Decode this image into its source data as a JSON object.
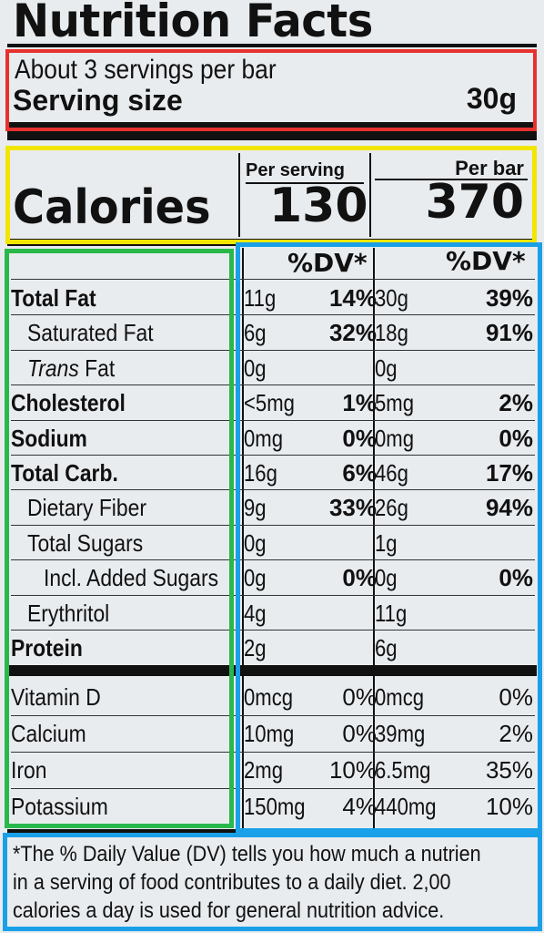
{
  "title": "Nutrition Facts",
  "servings_per_container": "About 3 servings per bar",
  "serving_size_label": "Serving size",
  "serving_size_value": "30g",
  "calories": {
    "label": "Calories",
    "per_serving_label": "Per serving",
    "per_bar_label": "Per bar",
    "per_serving": "130",
    "per_bar": "370"
  },
  "dv_header": "%DV*",
  "nutrients": [
    {
      "name": "Total Fat",
      "bold": true,
      "indent": 0,
      "serving_amount": "11g",
      "serving_dv": "14%",
      "bar_amount": "30g",
      "bar_dv": "39%"
    },
    {
      "name": "Saturated Fat",
      "bold": false,
      "indent": 1,
      "serving_amount": "6g",
      "serving_dv": "32%",
      "bar_amount": "18g",
      "bar_dv": "91%"
    },
    {
      "name_italic": "Trans",
      "name": "Fat",
      "bold": false,
      "indent": 1,
      "serving_amount": "0g",
      "serving_dv": "",
      "bar_amount": "0g",
      "bar_dv": ""
    },
    {
      "name": "Cholesterol",
      "bold": true,
      "indent": 0,
      "serving_amount": "<5mg",
      "serving_dv": "1%",
      "bar_amount": "5mg",
      "bar_dv": "2%"
    },
    {
      "name": "Sodium",
      "bold": true,
      "indent": 0,
      "serving_amount": "0mg",
      "serving_dv": "0%",
      "bar_amount": "0mg",
      "bar_dv": "0%"
    },
    {
      "name": "Total Carb.",
      "bold": true,
      "indent": 0,
      "serving_amount": "16g",
      "serving_dv": "6%",
      "bar_amount": "46g",
      "bar_dv": "17%"
    },
    {
      "name": "Dietary Fiber",
      "bold": false,
      "indent": 1,
      "serving_amount": "9g",
      "serving_dv": "33%",
      "bar_amount": "26g",
      "bar_dv": "94%"
    },
    {
      "name": "Total Sugars",
      "bold": false,
      "indent": 1,
      "serving_amount": "0g",
      "serving_dv": "",
      "bar_amount": "1g",
      "bar_dv": ""
    },
    {
      "name": "Incl. Added Sugars",
      "bold": false,
      "indent": 2,
      "serving_amount": "0g",
      "serving_dv": "0%",
      "bar_amount": "0g",
      "bar_dv": "0%"
    },
    {
      "name": "Erythritol",
      "bold": false,
      "indent": 1,
      "serving_amount": "4g",
      "serving_dv": "",
      "bar_amount": "11g",
      "bar_dv": ""
    },
    {
      "name": "Protein",
      "bold": true,
      "indent": 0,
      "serving_amount": "2g",
      "serving_dv": "",
      "bar_amount": "6g",
      "bar_dv": ""
    }
  ],
  "minerals": [
    {
      "name": "Vitamin D",
      "serving_amount": "0mcg",
      "serving_dv": "0%",
      "bar_amount": "0mcg",
      "bar_dv": "0%"
    },
    {
      "name": "Calcium",
      "serving_amount": "10mg",
      "serving_dv": "0%",
      "bar_amount": "39mg",
      "bar_dv": "2%"
    },
    {
      "name": "Iron",
      "serving_amount": "2mg",
      "serving_dv": "10%",
      "bar_amount": "6.5mg",
      "bar_dv": "35%"
    },
    {
      "name": "Potassium",
      "serving_amount": "150mg",
      "serving_dv": "4%",
      "bar_amount": "440mg",
      "bar_dv": "10%"
    }
  ],
  "footnote": [
    "*The % Daily Value (DV) tells you how much a nutrien",
    "in a serving of food contributes to a daily diet. 2,00",
    "calories a day is used for general nutrition advice."
  ],
  "colors": {
    "annotation_red": "#e8312f",
    "annotation_yellow": "#f2e600",
    "annotation_green": "#29b84a",
    "annotation_blue": "#1aa0e8",
    "package_background": "#d9a43a"
  }
}
